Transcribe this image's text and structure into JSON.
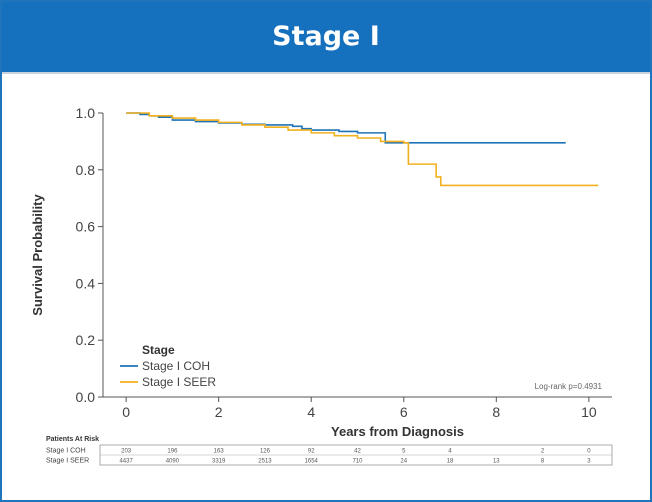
{
  "header": {
    "title": "Stage I"
  },
  "chart_data": {
    "type": "line",
    "title": "Stage I",
    "xlabel": "Years from Diagnosis",
    "ylabel": "Survival Probability",
    "xlim": [
      -0.5,
      10.5
    ],
    "ylim": [
      0.0,
      1.0
    ],
    "xticks": [
      "0",
      "2",
      "4",
      "6",
      "8",
      "10"
    ],
    "yticks": [
      "0.0",
      "0.2",
      "0.4",
      "0.6",
      "0.8",
      "1.0"
    ],
    "legend": {
      "title": "Stage",
      "placement": "bottom-left",
      "entries": [
        "Stage I COH",
        "Stage I SEER"
      ]
    },
    "annotation": "Log-rank p=0.4931",
    "series": [
      {
        "name": "Stage I COH",
        "color": "#1f73b7",
        "step": true,
        "x": [
          0,
          0.3,
          0.5,
          0.7,
          1.0,
          1.5,
          2.0,
          2.5,
          3.0,
          3.6,
          3.8,
          4.0,
          4.6,
          5.0,
          5.6,
          9.5
        ],
        "y": [
          1.0,
          0.995,
          0.99,
          0.985,
          0.975,
          0.97,
          0.965,
          0.96,
          0.958,
          0.953,
          0.945,
          0.94,
          0.935,
          0.93,
          0.895,
          0.895
        ]
      },
      {
        "name": "Stage I SEER",
        "color": "#f2b01e",
        "step": true,
        "x": [
          0,
          0.5,
          1.0,
          1.5,
          2.0,
          2.5,
          3.0,
          3.5,
          4.0,
          4.5,
          5.0,
          5.5,
          6.0,
          6.1,
          6.7,
          6.8,
          10.2
        ],
        "y": [
          1.0,
          0.99,
          0.982,
          0.975,
          0.967,
          0.958,
          0.95,
          0.94,
          0.93,
          0.92,
          0.912,
          0.9,
          0.895,
          0.82,
          0.775,
          0.745,
          0.745
        ]
      }
    ],
    "risk_table": {
      "title": "Patients At Risk",
      "rows": [
        {
          "label": "Stage I COH",
          "values": [
            "203",
            "196",
            "163",
            "126",
            "92",
            "42",
            "5",
            "4",
            "",
            "2",
            "0"
          ]
        },
        {
          "label": "Stage I SEER",
          "values": [
            "4437",
            "4090",
            "3319",
            "2513",
            "1654",
            "710",
            "24",
            "18",
            "13",
            "8",
            "3"
          ]
        }
      ]
    }
  }
}
